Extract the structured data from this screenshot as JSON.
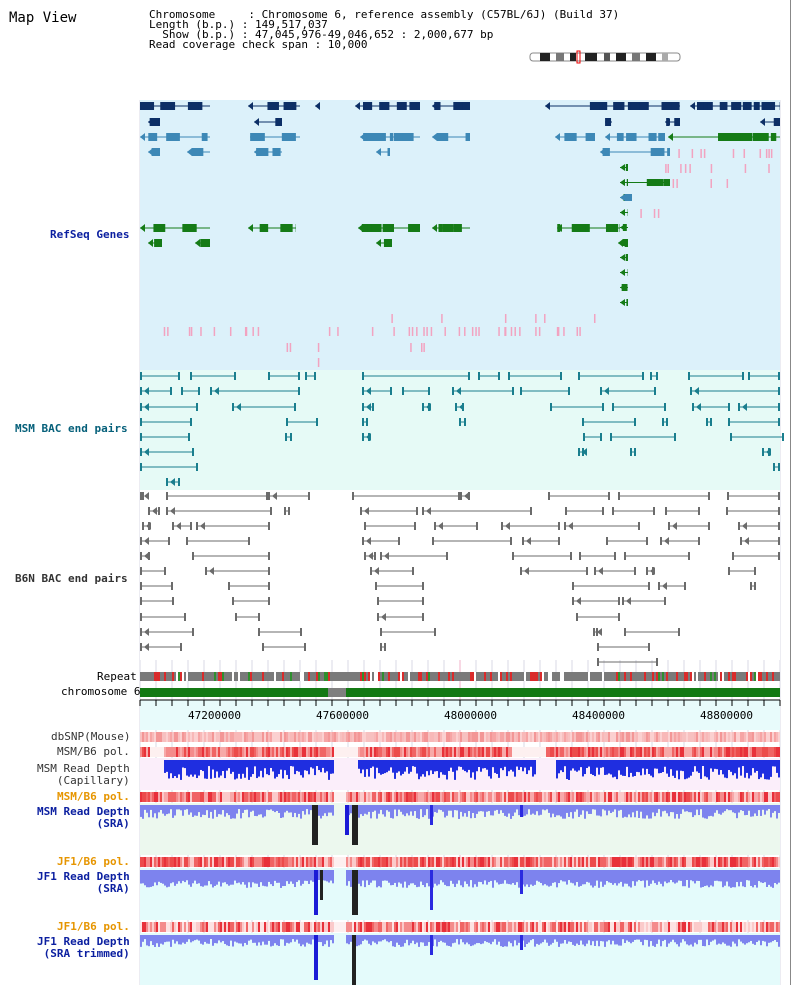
{
  "title": "Map View",
  "info": {
    "line1": "Chromosome     : Chromosome 6, reference assembly (C57BL/6J) (Build 37)",
    "line2": "Length (b.p.) : 149,517,037",
    "line3": "  Show (b.p.) : 47,045,976-49,046,652 : 2,000,677 bp",
    "line4": "Read coverage check span : 10,000"
  },
  "tracks": {
    "refseq": "RefSeq Genes",
    "msm_bac": "MSM BAC end pairs",
    "b6n_bac": "B6N BAC end pairs",
    "repeat": "Repeat",
    "chromosome": "chromosome 6",
    "dbsnp": "dbSNP(Mouse)",
    "msm_b6_pol_1": "MSM/B6 pol.",
    "msm_read_cap_1": "MSM Read Depth",
    "msm_read_cap_2": "(Capillary)",
    "msm_b6_pol_2": "MSM/B6 pol.",
    "msm_read_sra_1": "MSM Read Depth",
    "msm_read_sra_2": "(SRA)",
    "jf1_b6_pol_1": "JF1/B6 pol.",
    "jf1_read_sra_1": "JF1 Read Depth",
    "jf1_read_sra_2": "(SRA)",
    "jf1_b6_pol_2": "JF1/B6 pol.",
    "jf1_read_trim_1": "JF1 Read Depth",
    "jf1_read_trim_2": "(SRA trimmed)"
  },
  "axis": {
    "ticks": [
      "47200000",
      "47600000",
      "48000000",
      "48400000",
      "48800000"
    ]
  },
  "colors": {
    "refseq_bg": "#dcf1fa",
    "bac_bg": "#e6faf6",
    "gene_dark": "#0d2f66",
    "gene_mid": "#3d88b6",
    "gene_green": "#157b16",
    "gene_pink": "#f2a3c0",
    "bac_teal": "#1a7e8e",
    "bac_grey": "#6b6b6b",
    "chrom_green": "#137913",
    "depth_blue": "#1f2ee0",
    "depth_light": "#7d83ee",
    "pol_red": "#e8313a"
  }
}
